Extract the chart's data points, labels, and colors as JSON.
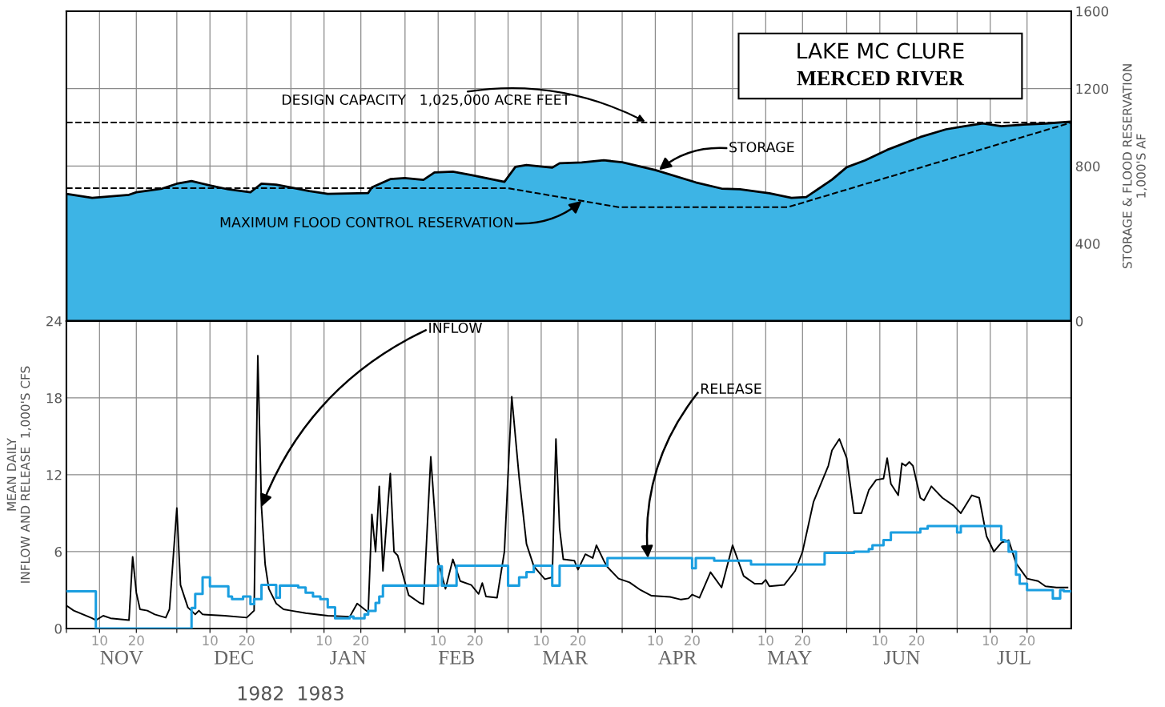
{
  "chart_data": [
    {
      "type": "area",
      "title": "LAKE MC CLURE",
      "subtitle": "MERCED RIVER",
      "ylabel": "STORAGE & FLOOD RESERVATION\n1,000'S AF",
      "xlim": [
        "1982-11-01",
        "1983-08-01"
      ],
      "xticks": [
        "1982-11-01",
        "1982-11-10",
        "1982-11-20",
        "1982-12-01",
        "1982-12-10",
        "1982-12-20",
        "1983-01-01",
        "1983-01-10",
        "1983-01-20",
        "1983-02-01",
        "1983-02-10",
        "1983-02-20",
        "1983-03-01",
        "1983-03-10",
        "1983-03-20",
        "1983-04-01",
        "1983-04-10",
        "1983-04-20",
        "1983-05-01",
        "1983-05-10",
        "1983-05-20",
        "1983-06-01",
        "1983-06-10",
        "1983-06-20",
        "1983-07-01",
        "1983-07-10",
        "1983-07-20"
      ],
      "ylim": [
        0,
        1600
      ],
      "yticks": [
        0,
        400,
        800,
        1200,
        1600
      ],
      "tick_labels": "y",
      "grid": true,
      "series": [
        {
          "color": "#3db4e5",
          "x": [
            "1982-11-01",
            "1982-11-08",
            "1982-11-18",
            "1982-11-20",
            "1982-11-27",
            "1982-12-01",
            "1982-12-05",
            "1982-12-10",
            "1982-12-15",
            "1982-12-21",
            "1982-12-22",
            "1982-12-24",
            "1982-12-28",
            "1983-01-01",
            "1983-01-06",
            "1983-01-11",
            "1983-01-22",
            "1983-01-23",
            "1983-01-28",
            "1983-02-01",
            "1983-02-06",
            "1983-02-09",
            "1983-02-14",
            "1983-02-19",
            "1983-02-28",
            "1983-03-03",
            "1983-03-06",
            "1983-03-13",
            "1983-03-15",
            "1983-03-21",
            "1983-03-27",
            "1983-04-01",
            "1983-04-10",
            "1983-04-21",
            "1983-04-28",
            "1983-05-03",
            "1983-05-11",
            "1983-05-17",
            "1983-05-21",
            "1983-05-28",
            "1983-06-01",
            "1983-06-06",
            "1983-06-12",
            "1983-06-21",
            "1983-06-28",
            "1983-07-03",
            "1983-07-08",
            "1983-07-13",
            "1983-07-19",
            "1983-07-25",
            "1983-08-01"
          ],
          "values": [
            657,
            636,
            652,
            665,
            684,
            709,
            723,
            700,
            680,
            665,
            680,
            709,
            704,
            690,
            671,
            657,
            661,
            690,
            733,
            738,
            729,
            767,
            771,
            754,
            719,
            796,
            806,
            792,
            815,
            819,
            830,
            820,
            780,
            716,
            684,
            680,
            660,
            636,
            640,
            730,
            794,
            830,
            884,
            950,
            990,
            1006,
            1020,
            1006,
            1014,
            1020,
            1030
          ]
        },
        {
          "type": "line",
          "color": "#000000",
          "line_style": "dashed",
          "x": [
            "1982-11-01",
            "1983-03-01",
            "1983-03-31",
            "1983-05-16",
            "1983-08-01"
          ],
          "values": [
            686,
            686,
            588,
            588,
            1025
          ]
        }
      ],
      "ref_lines": [
        {
          "axis": "y",
          "value": 1025,
          "label": "DESIGN CAPACITY   1,025,000 ACRE FEET",
          "color": "#000000",
          "line_style": "dashed"
        }
      ],
      "annotations": [
        {
          "text": "STORAGE",
          "x": "1983-04-11",
          "y": 780
        },
        {
          "text": "MAXIMUM FLOOD CONTROL RESERVATION",
          "x": "1983-03-21",
          "y": 620
        }
      ]
    },
    {
      "type": "line",
      "ylabel": "MEAN DAILY\nINFLOW AND RELEASE  1,000'S CFS",
      "xlim": [
        "1982-11-01",
        "1983-08-01"
      ],
      "xticks": [
        {
          "value": "1982-11-01",
          "label": null
        },
        {
          "value": "1982-11-10",
          "label": "10"
        },
        {
          "value": "1982-11-20",
          "label": "20"
        },
        {
          "value": "1982-12-01",
          "label": null
        },
        {
          "value": "1982-12-10",
          "label": "10"
        },
        {
          "value": "1982-12-20",
          "label": "20"
        },
        {
          "value": "1983-01-01",
          "label": null
        },
        {
          "value": "1983-01-10",
          "label": "10"
        },
        {
          "value": "1983-01-20",
          "label": "20"
        },
        {
          "value": "1983-02-01",
          "label": null
        },
        {
          "value": "1983-02-10",
          "label": "10"
        },
        {
          "value": "1983-02-20",
          "label": "20"
        },
        {
          "value": "1983-03-01",
          "label": null
        },
        {
          "value": "1983-03-10",
          "label": "10"
        },
        {
          "value": "1983-03-20",
          "label": "20"
        },
        {
          "value": "1983-04-01",
          "label": null
        },
        {
          "value": "1983-04-10",
          "label": "10"
        },
        {
          "value": "1983-04-20",
          "label": "20"
        },
        {
          "value": "1983-05-01",
          "label": null
        },
        {
          "value": "1983-05-10",
          "label": "10"
        },
        {
          "value": "1983-05-20",
          "label": "20"
        },
        {
          "value": "1983-06-01",
          "label": null
        },
        {
          "value": "1983-06-10",
          "label": "10"
        },
        {
          "value": "1983-06-20",
          "label": "20"
        },
        {
          "value": "1983-07-01",
          "label": null
        },
        {
          "value": "1983-07-10",
          "label": "10"
        },
        {
          "value": "1983-07-20",
          "label": "20"
        }
      ],
      "ylim": [
        0,
        24
      ],
      "yticks": [
        0,
        6,
        12,
        18,
        24
      ],
      "grid": true,
      "series": [
        {
          "color": "#000000",
          "x": [
            "1982-11-01",
            "1982-11-03",
            "1982-11-08",
            "1982-11-09",
            "1982-11-11",
            "1982-11-13",
            "1982-11-18",
            "1982-11-19",
            "1982-11-20",
            "1982-11-21",
            "1982-11-23",
            "1982-11-25",
            "1982-11-28",
            "1982-11-29",
            "1982-12-01",
            "1982-12-02",
            "1982-12-04",
            "1982-12-06",
            "1982-12-07",
            "1982-12-08",
            "1982-12-14",
            "1982-12-20",
            "1982-12-22",
            "1982-12-23",
            "1982-12-24",
            "1982-12-25",
            "1982-12-26",
            "1982-12-28",
            "1982-12-30",
            "1983-01-01",
            "1983-01-05",
            "1983-01-11",
            "1983-01-17",
            "1983-01-19",
            "1983-01-21",
            "1983-01-22",
            "1983-01-23",
            "1983-01-24",
            "1983-01-25",
            "1983-01-26",
            "1983-01-28",
            "1983-01-29",
            "1983-01-30",
            "1983-02-01",
            "1983-02-02",
            "1983-02-05",
            "1983-02-06",
            "1983-02-08",
            "1983-02-10",
            "1983-02-12",
            "1983-02-14",
            "1983-02-16",
            "1983-02-19",
            "1983-02-21",
            "1983-02-22",
            "1983-02-23",
            "1983-02-26",
            "1983-02-28",
            "1983-03-02",
            "1983-03-04",
            "1983-03-06",
            "1983-03-08",
            "1983-03-11",
            "1983-03-13",
            "1983-03-14",
            "1983-03-15",
            "1983-03-16",
            "1983-03-19",
            "1983-03-20",
            "1983-03-22",
            "1983-03-24",
            "1983-03-25",
            "1983-03-27",
            "1983-03-28",
            "1983-03-31",
            "1983-04-03",
            "1983-04-06",
            "1983-04-09",
            "1983-04-14",
            "1983-04-17",
            "1983-04-19",
            "1983-04-20",
            "1983-04-22",
            "1983-04-25",
            "1983-04-28",
            "1983-05-01",
            "1983-05-04",
            "1983-05-07",
            "1983-05-09",
            "1983-05-10",
            "1983-05-11",
            "1983-05-15",
            "1983-05-18",
            "1983-05-20",
            "1983-05-23",
            "1983-05-27",
            "1983-05-28",
            "1983-05-30",
            "1983-06-01",
            "1983-06-03",
            "1983-06-05",
            "1983-06-07",
            "1983-06-09",
            "1983-06-11",
            "1983-06-12",
            "1983-06-13",
            "1983-06-15",
            "1983-06-16",
            "1983-06-17",
            "1983-06-18",
            "1983-06-19",
            "1983-06-21",
            "1983-06-22",
            "1983-06-24",
            "1983-06-27",
            "1983-06-30",
            "1983-07-02",
            "1983-07-05",
            "1983-07-07",
            "1983-07-09",
            "1983-07-11",
            "1983-07-13",
            "1983-07-15",
            "1983-07-17",
            "1983-07-20",
            "1983-07-23",
            "1983-07-25",
            "1983-07-28",
            "1983-07-31"
          ],
          "values": [
            1.8,
            1.4,
            0.8,
            0.65,
            1.0,
            0.8,
            0.65,
            5.6,
            2.8,
            1.5,
            1.4,
            1.1,
            0.85,
            1.5,
            9.4,
            3.4,
            1.65,
            1.1,
            1.4,
            1.1,
            1.0,
            0.85,
            1.4,
            21.3,
            9.5,
            5.0,
            3.1,
            1.95,
            1.5,
            1.4,
            1.2,
            1.0,
            0.93,
            1.95,
            1.5,
            1.28,
            8.9,
            6.0,
            11.1,
            4.5,
            12.1,
            6.0,
            5.7,
            3.6,
            2.6,
            2.0,
            1.9,
            13.4,
            5.2,
            3.1,
            5.4,
            3.7,
            3.4,
            2.7,
            3.55,
            2.5,
            2.4,
            6.0,
            18.1,
            11.8,
            6.6,
            4.85,
            3.85,
            4.0,
            14.8,
            7.8,
            5.4,
            5.3,
            4.6,
            5.8,
            5.5,
            6.5,
            5.3,
            4.8,
            3.9,
            3.6,
            3.0,
            2.56,
            2.47,
            2.26,
            2.35,
            2.65,
            2.4,
            4.4,
            3.2,
            6.5,
            4.1,
            3.5,
            3.5,
            3.8,
            3.3,
            3.4,
            4.5,
            6.0,
            9.9,
            12.7,
            13.9,
            14.8,
            13.3,
            9.0,
            9.0,
            10.8,
            11.6,
            11.7,
            13.3,
            11.3,
            10.4,
            12.9,
            12.7,
            13.0,
            12.7,
            10.2,
            10.0,
            11.1,
            10.2,
            9.6,
            9.0,
            10.4,
            10.2,
            7.2,
            6.0,
            6.7,
            6.9,
            5.1,
            3.9,
            3.7,
            3.3,
            3.2,
            3.2
          ]
        },
        {
          "type": "step",
          "color": "#1a9ee0",
          "x": [
            "1982-11-01",
            "1982-11-09",
            "1982-12-05",
            "1982-12-06",
            "1982-12-08",
            "1982-12-10",
            "1982-12-15",
            "1982-12-16",
            "1982-12-19",
            "1982-12-21",
            "1982-12-22",
            "1982-12-24",
            "1982-12-28",
            "1982-12-29",
            "1983-01-03",
            "1983-01-05",
            "1983-01-07",
            "1983-01-09",
            "1983-01-11",
            "1983-01-13",
            "1983-01-17",
            "1983-01-18",
            "1983-01-21",
            "1983-01-22",
            "1983-01-24",
            "1983-01-25",
            "1983-01-26",
            "1983-02-10",
            "1983-02-11",
            "1983-02-15",
            "1983-03-01",
            "1983-03-04",
            "1983-03-06",
            "1983-03-08",
            "1983-03-13",
            "1983-03-15",
            "1983-03-28",
            "1983-04-20",
            "1983-04-21",
            "1983-04-26",
            "1983-05-06",
            "1983-05-26",
            "1983-06-03",
            "1983-06-07",
            "1983-06-08",
            "1983-06-11",
            "1983-06-13",
            "1983-06-21",
            "1983-06-23",
            "1983-07-01",
            "1983-07-02",
            "1983-07-13",
            "1983-07-14",
            "1983-07-15",
            "1983-07-17",
            "1983-07-18",
            "1983-07-20",
            "1983-07-27",
            "1983-07-29",
            "1983-07-30",
            "1983-08-01"
          ],
          "values": [
            2.9,
            0,
            1.6,
            2.7,
            4.0,
            3.3,
            2.5,
            2.3,
            2.5,
            1.9,
            2.3,
            3.4,
            2.4,
            3.35,
            3.2,
            2.8,
            2.5,
            2.3,
            1.65,
            0.8,
            0.93,
            0.8,
            1.1,
            1.37,
            2.0,
            2.5,
            3.35,
            4.85,
            3.35,
            4.9,
            3.35,
            4.0,
            4.4,
            4.9,
            3.35,
            4.9,
            5.5,
            4.7,
            5.5,
            5.3,
            5.0,
            5.9,
            6.0,
            6.2,
            6.5,
            6.9,
            7.5,
            7.8,
            8.0,
            7.5,
            8.0,
            6.9,
            6.8,
            6.0,
            4.2,
            3.5,
            3.0,
            2.35,
            3.0,
            2.9,
            2.9
          ]
        }
      ],
      "annotations": [
        {
          "text": "INFLOW",
          "x": "1982-12-24",
          "y": 9.5
        },
        {
          "text": "RELEASE",
          "x": "1983-04-08",
          "y": 5.5
        },
        "1982",
        "1983",
        "NOV",
        "DEC",
        "JAN",
        "FEB",
        "MAR",
        "APR",
        "MAY",
        "JUN",
        "JUL"
      ]
    }
  ]
}
